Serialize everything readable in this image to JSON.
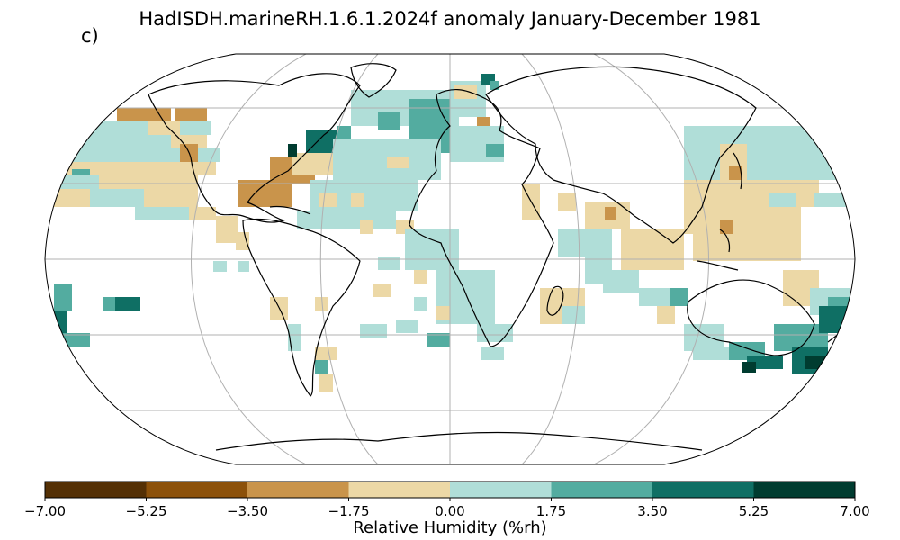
{
  "title": "HadISDH.marineRH.1.6.1.2024f anomaly January-December 1981",
  "panel_label": "c)",
  "colorbar": {
    "label": "Relative Humidity (%rh)",
    "ticks": [
      "−7.00",
      "−5.25",
      "−3.50",
      "−1.75",
      "0.00",
      "1.75",
      "3.50",
      "5.25",
      "7.00"
    ],
    "bins": [
      {
        "from": -7.0,
        "to": -5.25,
        "color": "#543005"
      },
      {
        "from": -5.25,
        "to": -3.5,
        "color": "#8c510a"
      },
      {
        "from": -3.5,
        "to": -1.75,
        "color": "#c9944b"
      },
      {
        "from": -1.75,
        "to": 0.0,
        "color": "#ecd8a6"
      },
      {
        "from": 0.0,
        "to": 1.75,
        "color": "#b0ded8"
      },
      {
        "from": 1.75,
        "to": 3.5,
        "color": "#53aca0"
      },
      {
        "from": 3.5,
        "to": 5.25,
        "color": "#0f6f64"
      },
      {
        "from": 5.25,
        "to": 7.0,
        "color": "#003c30"
      }
    ]
  },
  "map": {
    "projection": "Robinson",
    "graticule": true,
    "colors": {
      "land_outline": "#000000",
      "grid": "#b0b0b0",
      "ocean": "#ffffff"
    }
  }
}
